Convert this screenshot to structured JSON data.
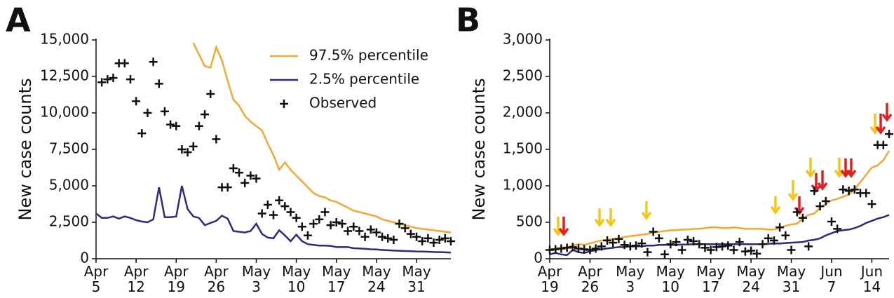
{
  "chart_data": [
    {
      "type": "line",
      "panel_label": "A",
      "y_label": "New case counts",
      "legend": "upper right",
      "categories": [
        "Apr 5",
        null,
        null,
        null,
        null,
        null,
        null,
        "Apr 12",
        null,
        null,
        null,
        null,
        null,
        null,
        "Apr 19",
        null,
        null,
        null,
        null,
        null,
        null,
        "Apr 26",
        null,
        null,
        null,
        null,
        null,
        null,
        "May 3",
        null,
        null,
        null,
        null,
        null,
        null,
        "May 10",
        null,
        null,
        null,
        null,
        null,
        null,
        "May 17",
        null,
        null,
        null,
        null,
        null,
        null,
        "May 24",
        null,
        null,
        null,
        null,
        null,
        null,
        "May 31",
        null,
        null,
        null,
        null,
        null,
        null
      ],
      "ylim": [
        0,
        15000
      ],
      "yticks": [
        0,
        {
          "value": 2500,
          "label": "2,500"
        },
        {
          "value": 5000,
          "label": "5,000"
        },
        {
          "value": 7500,
          "label": "7,500"
        },
        {
          "value": 10000,
          "label": "10,000"
        },
        {
          "value": 12500,
          "label": "12,500"
        },
        {
          "value": 15000,
          "label": "15,000"
        }
      ],
      "series": [
        {
          "name": "97.5% percentile",
          "color": "#f5a733",
          "mode": "line",
          "values": [
            null,
            null,
            null,
            null,
            null,
            null,
            null,
            null,
            null,
            null,
            null,
            null,
            null,
            null,
            null,
            null,
            null,
            14800,
            14000,
            13200,
            13100,
            14500,
            13600,
            12200,
            10900,
            10500,
            9800,
            9400,
            9100,
            8800,
            7900,
            7100,
            6100,
            6600,
            6100,
            5700,
            5300,
            4900,
            4500,
            4300,
            4200,
            4000,
            3900,
            3700,
            3500,
            3300,
            3200,
            3100,
            3000,
            2900,
            2700,
            2600,
            2500,
            2400,
            2300,
            2200,
            2100,
            2050,
            2000,
            1950,
            1900,
            1850,
            1800
          ]
        },
        {
          "name": "2.5% percentile",
          "color": "#2e2a7e",
          "mode": "line",
          "values": [
            3100,
            2800,
            2800,
            2900,
            2750,
            2900,
            2800,
            2650,
            2550,
            2500,
            2700,
            4900,
            2850,
            2850,
            2900,
            5000,
            3400,
            2900,
            2800,
            2300,
            2450,
            2600,
            2950,
            2750,
            1900,
            1850,
            1800,
            1900,
            2400,
            1700,
            1450,
            1400,
            1950,
            1600,
            1200,
            1650,
            1200,
            1000,
            950,
            900,
            900,
            880,
            800,
            800,
            800,
            720,
            700,
            680,
            650,
            640,
            600,
            580,
            560,
            550,
            530,
            520,
            500,
            490,
            480,
            460,
            450,
            440,
            420
          ]
        },
        {
          "name": "Observed",
          "color": "#111111",
          "mode": "markers",
          "values": [
            null,
            12100,
            12300,
            12400,
            13400,
            13400,
            12300,
            10800,
            8600,
            10000,
            13500,
            12000,
            10100,
            9200,
            9100,
            7500,
            7300,
            7700,
            9100,
            9900,
            11300,
            8200,
            4900,
            4900,
            6200,
            5900,
            5200,
            5700,
            5500,
            3100,
            3700,
            3000,
            4000,
            3600,
            3200,
            2800,
            2200,
            1600,
            2400,
            2700,
            3200,
            2300,
            2500,
            2400,
            1900,
            2200,
            1900,
            1500,
            2000,
            1800,
            1500,
            1400,
            1300,
            2400,
            2100,
            1700,
            1500,
            1200,
            1400,
            1100,
            1300,
            1400,
            1200
          ]
        }
      ]
    },
    {
      "type": "line",
      "panel_label": "B",
      "y_label": "New case counts",
      "categories": [
        "Apr 19",
        null,
        null,
        null,
        null,
        null,
        null,
        "Apr 26",
        null,
        null,
        null,
        null,
        null,
        null,
        "May 3",
        null,
        null,
        null,
        null,
        null,
        null,
        "May 10",
        null,
        null,
        null,
        null,
        null,
        null,
        "May 17",
        null,
        null,
        null,
        null,
        null,
        null,
        "May 24",
        null,
        null,
        null,
        null,
        null,
        null,
        "May 31",
        null,
        null,
        null,
        null,
        null,
        null,
        "Jun 7",
        null,
        null,
        null,
        null,
        null,
        null,
        "Jun 14",
        null,
        null,
        null
      ],
      "ylim": [
        0,
        3000
      ],
      "yticks": [
        0,
        500,
        {
          "value": 1000,
          "label": "1,000"
        },
        {
          "value": 1500,
          "label": "1,500"
        },
        {
          "value": 2000,
          "label": "2,000"
        },
        {
          "value": 2500,
          "label": "2,500"
        },
        {
          "value": 3000,
          "label": "3,000"
        }
      ],
      "series": [
        {
          "color": "#f5a733",
          "mode": "line",
          "values": [
            120,
            140,
            150,
            160,
            180,
            200,
            190,
            210,
            230,
            250,
            260,
            270,
            280,
            300,
            310,
            320,
            330,
            340,
            360,
            370,
            380,
            390,
            390,
            400,
            400,
            410,
            410,
            420,
            430,
            430,
            420,
            420,
            430,
            420,
            410,
            410,
            410,
            410,
            400,
            400,
            420,
            450,
            470,
            480,
            550,
            600,
            620,
            700,
            750,
            800,
            820,
            850,
            880,
            950,
            1050,
            1150,
            1250,
            1280,
            1350,
            1480
          ]
        },
        {
          "color": "#2e2a7e",
          "mode": "line",
          "values": [
            60,
            80,
            60,
            50,
            120,
            90,
            80,
            100,
            120,
            130,
            140,
            150,
            160,
            160,
            170,
            170,
            170,
            180,
            180,
            190,
            190,
            190,
            190,
            195,
            195,
            200,
            200,
            200,
            200,
            200,
            200,
            200,
            200,
            200,
            200,
            200,
            200,
            200,
            205,
            210,
            210,
            215,
            220,
            225,
            230,
            250,
            260,
            280,
            320,
            350,
            380,
            390,
            400,
            420,
            450,
            490,
            520,
            550,
            570,
            600
          ]
        },
        {
          "color": "#111111",
          "mode": "markers",
          "values": [
            120,
            130,
            140,
            150,
            160,
            140,
            130,
            120,
            140,
            170,
            250,
            220,
            270,
            190,
            170,
            180,
            210,
            90,
            370,
            280,
            60,
            200,
            230,
            120,
            260,
            240,
            200,
            150,
            120,
            160,
            170,
            180,
            120,
            230,
            100,
            110,
            70,
            200,
            280,
            250,
            430,
            320,
            120,
            640,
            560,
            170,
            930,
            720,
            790,
            510,
            410,
            950,
            930,
            950,
            900,
            900,
            750,
            1560,
            1560,
            1710
          ]
        }
      ]
    }
  ]
}
